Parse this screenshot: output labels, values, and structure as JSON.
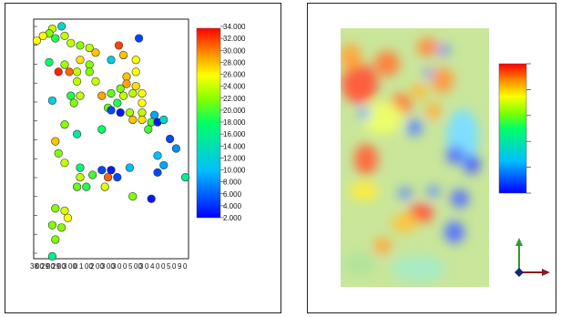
{
  "chart_data": [
    {
      "type": "scatter",
      "colorscale": "jet",
      "color_range": [
        2.0,
        34.0
      ],
      "colorbar_ticks": [
        "34.000",
        "32.000",
        "30.000",
        "28.000",
        "26.000",
        "24.000",
        "22.000",
        "20.000",
        "18.000",
        "16.000",
        "14.000",
        "12.000",
        "10.000",
        "8.000",
        "6.000",
        "4.000",
        "2.000"
      ],
      "x_tick_labels": [
        "38",
        "00",
        "29",
        "00",
        "29",
        "00",
        "3",
        "00",
        "0",
        "1",
        "00",
        "2",
        "00",
        "3",
        "00",
        "3",
        "0",
        "0",
        "5",
        "00",
        "3",
        "0",
        "4",
        "0",
        "0",
        "5",
        "0",
        "9",
        "0"
      ],
      "points": [
        {
          "x": 0.02,
          "y": 0.91,
          "v": 26
        },
        {
          "x": 0.18,
          "y": 0.97,
          "v": 13
        },
        {
          "x": 0.12,
          "y": 0.96,
          "v": 24
        },
        {
          "x": 0.1,
          "y": 0.94,
          "v": 22
        },
        {
          "x": 0.2,
          "y": 0.93,
          "v": 24
        },
        {
          "x": 0.14,
          "y": 0.92,
          "v": 19
        },
        {
          "x": 0.06,
          "y": 0.93,
          "v": 26
        },
        {
          "x": 0.24,
          "y": 0.9,
          "v": 24
        },
        {
          "x": 0.3,
          "y": 0.89,
          "v": 22
        },
        {
          "x": 0.36,
          "y": 0.88,
          "v": 24
        },
        {
          "x": 0.4,
          "y": 0.86,
          "v": 28
        },
        {
          "x": 0.55,
          "y": 0.89,
          "v": 32
        },
        {
          "x": 0.68,
          "y": 0.92,
          "v": 5
        },
        {
          "x": 0.58,
          "y": 0.85,
          "v": 28
        },
        {
          "x": 0.66,
          "y": 0.83,
          "v": 26
        },
        {
          "x": 0.5,
          "y": 0.83,
          "v": 12
        },
        {
          "x": 0.3,
          "y": 0.83,
          "v": 27
        },
        {
          "x": 0.36,
          "y": 0.81,
          "v": 22
        },
        {
          "x": 0.2,
          "y": 0.81,
          "v": 23
        },
        {
          "x": 0.1,
          "y": 0.82,
          "v": 18
        },
        {
          "x": 0.16,
          "y": 0.78,
          "v": 33
        },
        {
          "x": 0.23,
          "y": 0.78,
          "v": 31
        },
        {
          "x": 0.28,
          "y": 0.78,
          "v": 24
        },
        {
          "x": 0.36,
          "y": 0.78,
          "v": 22
        },
        {
          "x": 0.66,
          "y": 0.78,
          "v": 26
        },
        {
          "x": 0.6,
          "y": 0.76,
          "v": 28
        },
        {
          "x": 0.28,
          "y": 0.74,
          "v": 24
        },
        {
          "x": 0.4,
          "y": 0.74,
          "v": 24
        },
        {
          "x": 0.6,
          "y": 0.73,
          "v": 29
        },
        {
          "x": 0.66,
          "y": 0.72,
          "v": 27
        },
        {
          "x": 0.56,
          "y": 0.71,
          "v": 22
        },
        {
          "x": 0.5,
          "y": 0.69,
          "v": 21
        },
        {
          "x": 0.64,
          "y": 0.69,
          "v": 24
        },
        {
          "x": 0.7,
          "y": 0.69,
          "v": 26
        },
        {
          "x": 0.24,
          "y": 0.68,
          "v": 19
        },
        {
          "x": 0.3,
          "y": 0.68,
          "v": 24
        },
        {
          "x": 0.44,
          "y": 0.68,
          "v": 29
        },
        {
          "x": 0.58,
          "y": 0.68,
          "v": 24
        },
        {
          "x": 0.12,
          "y": 0.66,
          "v": 12
        },
        {
          "x": 0.26,
          "y": 0.65,
          "v": 22
        },
        {
          "x": 0.54,
          "y": 0.65,
          "v": 19
        },
        {
          "x": 0.7,
          "y": 0.65,
          "v": 26
        },
        {
          "x": 0.48,
          "y": 0.63,
          "v": 21
        },
        {
          "x": 0.5,
          "y": 0.62,
          "v": 5
        },
        {
          "x": 0.56,
          "y": 0.61,
          "v": 3
        },
        {
          "x": 0.62,
          "y": 0.61,
          "v": 23
        },
        {
          "x": 0.7,
          "y": 0.61,
          "v": 24
        },
        {
          "x": 0.78,
          "y": 0.6,
          "v": 9
        },
        {
          "x": 0.64,
          "y": 0.58,
          "v": 28
        },
        {
          "x": 0.7,
          "y": 0.58,
          "v": 27
        },
        {
          "x": 0.76,
          "y": 0.57,
          "v": 20
        },
        {
          "x": 0.8,
          "y": 0.57,
          "v": 3
        },
        {
          "x": 0.84,
          "y": 0.58,
          "v": 13
        },
        {
          "x": 0.2,
          "y": 0.56,
          "v": 22
        },
        {
          "x": 0.44,
          "y": 0.54,
          "v": 18
        },
        {
          "x": 0.74,
          "y": 0.54,
          "v": 20
        },
        {
          "x": 0.28,
          "y": 0.52,
          "v": 15
        },
        {
          "x": 0.14,
          "y": 0.49,
          "v": 28
        },
        {
          "x": 0.88,
          "y": 0.5,
          "v": 5
        },
        {
          "x": 0.92,
          "y": 0.46,
          "v": 8
        },
        {
          "x": 0.16,
          "y": 0.44,
          "v": 22
        },
        {
          "x": 0.8,
          "y": 0.43,
          "v": 10
        },
        {
          "x": 0.2,
          "y": 0.4,
          "v": 24
        },
        {
          "x": 0.3,
          "y": 0.38,
          "v": 17
        },
        {
          "x": 0.44,
          "y": 0.37,
          "v": 5
        },
        {
          "x": 0.5,
          "y": 0.37,
          "v": 3
        },
        {
          "x": 0.62,
          "y": 0.38,
          "v": 10
        },
        {
          "x": 0.84,
          "y": 0.39,
          "v": 9
        },
        {
          "x": 0.8,
          "y": 0.36,
          "v": 5
        },
        {
          "x": 0.3,
          "y": 0.34,
          "v": 24
        },
        {
          "x": 0.38,
          "y": 0.35,
          "v": 20
        },
        {
          "x": 0.48,
          "y": 0.34,
          "v": 31
        },
        {
          "x": 0.54,
          "y": 0.34,
          "v": 5
        },
        {
          "x": 0.28,
          "y": 0.3,
          "v": 21
        },
        {
          "x": 0.34,
          "y": 0.3,
          "v": 19
        },
        {
          "x": 0.46,
          "y": 0.3,
          "v": 25
        },
        {
          "x": 0.98,
          "y": 0.34,
          "v": 16
        },
        {
          "x": 0.64,
          "y": 0.26,
          "v": 22
        },
        {
          "x": 0.76,
          "y": 0.25,
          "v": 3
        },
        {
          "x": 0.14,
          "y": 0.21,
          "v": 22
        },
        {
          "x": 0.2,
          "y": 0.2,
          "v": 25
        },
        {
          "x": 0.22,
          "y": 0.17,
          "v": 26
        },
        {
          "x": 0.12,
          "y": 0.14,
          "v": 22
        },
        {
          "x": 0.18,
          "y": 0.13,
          "v": 22
        },
        {
          "x": 0.14,
          "y": 0.08,
          "v": 22
        },
        {
          "x": 0.12,
          "y": 0.01,
          "v": 16
        }
      ]
    },
    {
      "type": "heatmap",
      "colorscale": "jet",
      "colorbar_ticks": [
        "",
        "",
        "",
        "",
        "",
        ""
      ]
    }
  ]
}
